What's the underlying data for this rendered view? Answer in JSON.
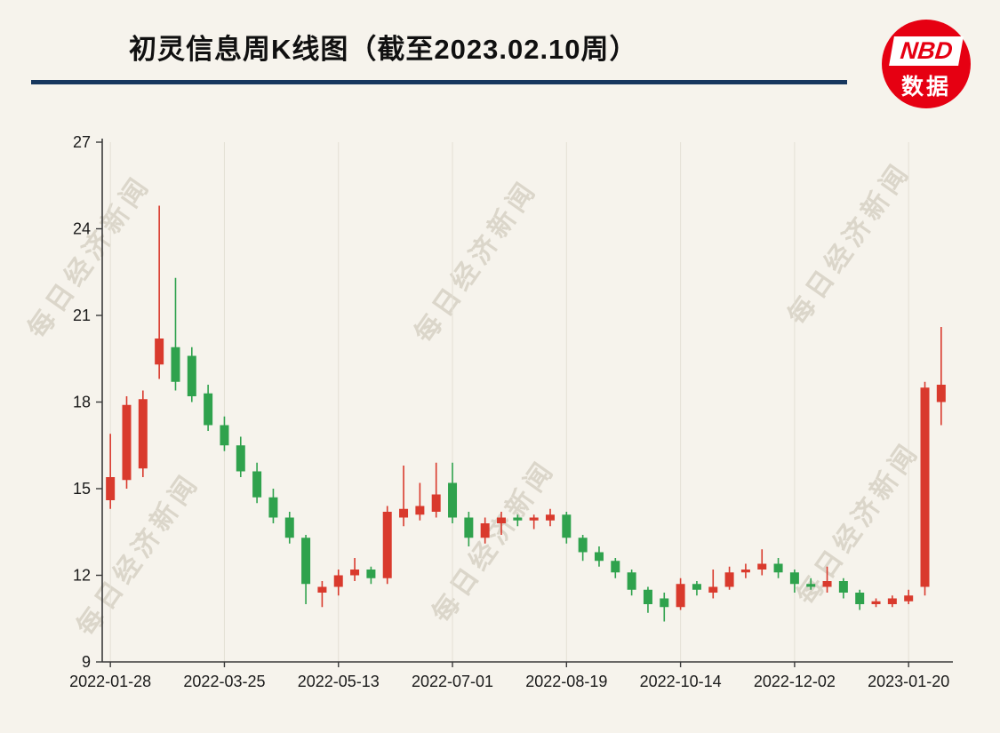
{
  "page": {
    "background": "#f6f3ec"
  },
  "header": {
    "title": "初灵信息周K线图（截至2023.02.10周）",
    "underline_color": "#17375e"
  },
  "logo": {
    "line1": "NBD",
    "line2": "数据",
    "bg": "#e60012"
  },
  "watermark": {
    "text": "每日经济新闻"
  },
  "chart_data": {
    "type": "candlestick",
    "title": "初灵信息周K线图（截至2023.02.10周）",
    "ylim": [
      9,
      27
    ],
    "y_ticks": [
      9,
      12,
      15,
      18,
      21,
      24,
      27
    ],
    "x_tick_labels": [
      "2022-01-28",
      "2022-03-25",
      "2022-05-13",
      "2022-07-01",
      "2022-08-19",
      "2022-10-14",
      "2022-12-02",
      "2023-01-20"
    ],
    "x_tick_indices": [
      0,
      7,
      14,
      21,
      28,
      35,
      42,
      49
    ],
    "up_color": "#d93a2d",
    "down_color": "#2fa24d",
    "grid": "vertical-only",
    "legend": "none",
    "candles": [
      {
        "d": "2022-01-28",
        "o": 14.6,
        "h": 16.9,
        "l": 14.3,
        "c": 15.4
      },
      {
        "d": "2022-02-11",
        "o": 15.3,
        "h": 18.2,
        "l": 15.0,
        "c": 17.9
      },
      {
        "d": "2022-02-18",
        "o": 15.7,
        "h": 18.4,
        "l": 15.4,
        "c": 18.1
      },
      {
        "d": "2022-02-25",
        "o": 19.3,
        "h": 24.8,
        "l": 18.8,
        "c": 20.2
      },
      {
        "d": "2022-03-04",
        "o": 19.9,
        "h": 22.3,
        "l": 18.4,
        "c": 18.7
      },
      {
        "d": "2022-03-11",
        "o": 19.6,
        "h": 19.9,
        "l": 18.0,
        "c": 18.2
      },
      {
        "d": "2022-03-18",
        "o": 18.3,
        "h": 18.6,
        "l": 17.0,
        "c": 17.2
      },
      {
        "d": "2022-03-25",
        "o": 17.2,
        "h": 17.5,
        "l": 16.3,
        "c": 16.5
      },
      {
        "d": "2022-04-01",
        "o": 16.5,
        "h": 16.8,
        "l": 15.4,
        "c": 15.6
      },
      {
        "d": "2022-04-08",
        "o": 15.6,
        "h": 15.9,
        "l": 14.5,
        "c": 14.7
      },
      {
        "d": "2022-04-15",
        "o": 14.7,
        "h": 15.0,
        "l": 13.8,
        "c": 14.0
      },
      {
        "d": "2022-04-22",
        "o": 14.0,
        "h": 14.2,
        "l": 13.1,
        "c": 13.3
      },
      {
        "d": "2022-04-29",
        "o": 13.3,
        "h": 13.4,
        "l": 11.0,
        "c": 11.7
      },
      {
        "d": "2022-05-06",
        "o": 11.4,
        "h": 11.8,
        "l": 10.9,
        "c": 11.6
      },
      {
        "d": "2022-05-13",
        "o": 11.6,
        "h": 12.2,
        "l": 11.3,
        "c": 12.0
      },
      {
        "d": "2022-05-20",
        "o": 12.0,
        "h": 12.6,
        "l": 11.8,
        "c": 12.2
      },
      {
        "d": "2022-05-27",
        "o": 12.2,
        "h": 12.3,
        "l": 11.7,
        "c": 11.9
      },
      {
        "d": "2022-06-02",
        "o": 11.9,
        "h": 14.4,
        "l": 11.7,
        "c": 14.2
      },
      {
        "d": "2022-06-10",
        "o": 14.0,
        "h": 15.8,
        "l": 13.7,
        "c": 14.3
      },
      {
        "d": "2022-06-17",
        "o": 14.1,
        "h": 15.2,
        "l": 13.9,
        "c": 14.4
      },
      {
        "d": "2022-06-24",
        "o": 14.2,
        "h": 15.9,
        "l": 14.0,
        "c": 14.8
      },
      {
        "d": "2022-07-01",
        "o": 15.2,
        "h": 15.9,
        "l": 13.8,
        "c": 14.0
      },
      {
        "d": "2022-07-08",
        "o": 14.0,
        "h": 14.2,
        "l": 13.0,
        "c": 13.3
      },
      {
        "d": "2022-07-15",
        "o": 13.3,
        "h": 14.0,
        "l": 13.1,
        "c": 13.8
      },
      {
        "d": "2022-07-22",
        "o": 13.8,
        "h": 14.2,
        "l": 13.4,
        "c": 14.0
      },
      {
        "d": "2022-07-29",
        "o": 14.0,
        "h": 14.1,
        "l": 13.7,
        "c": 13.9
      },
      {
        "d": "2022-08-05",
        "o": 13.9,
        "h": 14.1,
        "l": 13.6,
        "c": 14.0
      },
      {
        "d": "2022-08-12",
        "o": 13.9,
        "h": 14.3,
        "l": 13.7,
        "c": 14.1
      },
      {
        "d": "2022-08-19",
        "o": 14.1,
        "h": 14.2,
        "l": 13.1,
        "c": 13.3
      },
      {
        "d": "2022-08-26",
        "o": 13.3,
        "h": 13.4,
        "l": 12.5,
        "c": 12.8
      },
      {
        "d": "2022-09-02",
        "o": 12.8,
        "h": 13.0,
        "l": 12.3,
        "c": 12.5
      },
      {
        "d": "2022-09-09",
        "o": 12.5,
        "h": 12.6,
        "l": 11.9,
        "c": 12.1
      },
      {
        "d": "2022-09-16",
        "o": 12.1,
        "h": 12.2,
        "l": 11.3,
        "c": 11.5
      },
      {
        "d": "2022-09-23",
        "o": 11.5,
        "h": 11.6,
        "l": 10.7,
        "c": 11.0
      },
      {
        "d": "2022-09-30",
        "o": 11.2,
        "h": 11.4,
        "l": 10.4,
        "c": 10.9
      },
      {
        "d": "2022-10-14",
        "o": 10.9,
        "h": 11.9,
        "l": 10.8,
        "c": 11.7
      },
      {
        "d": "2022-10-21",
        "o": 11.7,
        "h": 11.8,
        "l": 11.3,
        "c": 11.5
      },
      {
        "d": "2022-10-28",
        "o": 11.4,
        "h": 12.2,
        "l": 11.2,
        "c": 11.6
      },
      {
        "d": "2022-11-04",
        "o": 11.6,
        "h": 12.3,
        "l": 11.5,
        "c": 12.1
      },
      {
        "d": "2022-11-11",
        "o": 12.1,
        "h": 12.4,
        "l": 11.9,
        "c": 12.2
      },
      {
        "d": "2022-11-18",
        "o": 12.2,
        "h": 12.9,
        "l": 12.0,
        "c": 12.4
      },
      {
        "d": "2022-11-25",
        "o": 12.4,
        "h": 12.6,
        "l": 11.9,
        "c": 12.1
      },
      {
        "d": "2022-12-02",
        "o": 12.1,
        "h": 12.2,
        "l": 11.4,
        "c": 11.7
      },
      {
        "d": "2022-12-09",
        "o": 11.7,
        "h": 11.9,
        "l": 11.5,
        "c": 11.6
      },
      {
        "d": "2022-12-16",
        "o": 11.6,
        "h": 12.3,
        "l": 11.4,
        "c": 11.8
      },
      {
        "d": "2022-12-23",
        "o": 11.8,
        "h": 11.9,
        "l": 11.2,
        "c": 11.4
      },
      {
        "d": "2022-12-30",
        "o": 11.4,
        "h": 11.5,
        "l": 10.8,
        "c": 11.0
      },
      {
        "d": "2023-01-06",
        "o": 11.0,
        "h": 11.2,
        "l": 10.9,
        "c": 11.1
      },
      {
        "d": "2023-01-13",
        "o": 11.0,
        "h": 11.3,
        "l": 10.9,
        "c": 11.2
      },
      {
        "d": "2023-01-20",
        "o": 11.1,
        "h": 11.5,
        "l": 11.0,
        "c": 11.3
      },
      {
        "d": "2023-02-03",
        "o": 11.6,
        "h": 18.7,
        "l": 11.3,
        "c": 18.5
      },
      {
        "d": "2023-02-10",
        "o": 18.0,
        "h": 20.6,
        "l": 17.2,
        "c": 18.6
      }
    ]
  }
}
